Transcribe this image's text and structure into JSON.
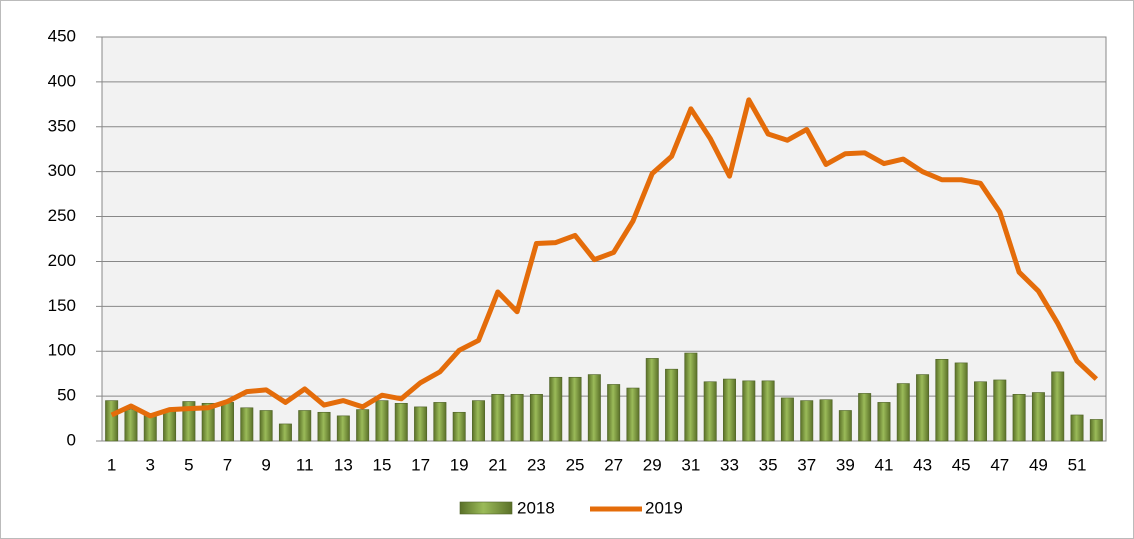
{
  "chart_data": {
    "type": "bar-line",
    "categories": [
      1,
      null,
      3,
      null,
      5,
      null,
      7,
      null,
      9,
      null,
      11,
      null,
      13,
      null,
      15,
      null,
      17,
      null,
      19,
      null,
      21,
      null,
      23,
      null,
      25,
      null,
      27,
      null,
      29,
      null,
      31,
      null,
      33,
      null,
      35,
      null,
      37,
      null,
      39,
      null,
      41,
      null,
      43,
      null,
      45,
      null,
      47,
      null,
      49,
      null,
      51,
      null
    ],
    "series": [
      {
        "name": "2018",
        "type": "bar",
        "color": "#77933c",
        "values": [
          45,
          35,
          30,
          33,
          44,
          42,
          43,
          37,
          34,
          19,
          34,
          32,
          28,
          35,
          45,
          42,
          38,
          43,
          32,
          45,
          52,
          52,
          52,
          71,
          71,
          74,
          63,
          59,
          92,
          80,
          98,
          66,
          69,
          67,
          67,
          48,
          45,
          46,
          34,
          53,
          43,
          64,
          74,
          91,
          87,
          66,
          68,
          52,
          54,
          77,
          29,
          24
        ]
      },
      {
        "name": "2019",
        "type": "line",
        "color": "#e46c0a",
        "values": [
          29,
          39,
          28,
          35,
          36,
          37,
          44,
          55,
          57,
          43,
          58,
          40,
          45,
          38,
          51,
          47,
          65,
          77,
          101,
          112,
          166,
          144,
          220,
          221,
          229,
          202,
          210,
          245,
          298,
          317,
          370,
          337,
          295,
          380,
          342,
          335,
          347,
          308,
          320,
          321,
          309,
          314,
          300,
          291,
          291,
          287,
          255,
          188,
          167,
          131,
          89,
          69
        ]
      }
    ],
    "ylim": [
      0,
      450
    ],
    "yticks": [
      0,
      50,
      100,
      150,
      200,
      250,
      300,
      350,
      400,
      450
    ],
    "grid": true,
    "legend": "bottom"
  }
}
